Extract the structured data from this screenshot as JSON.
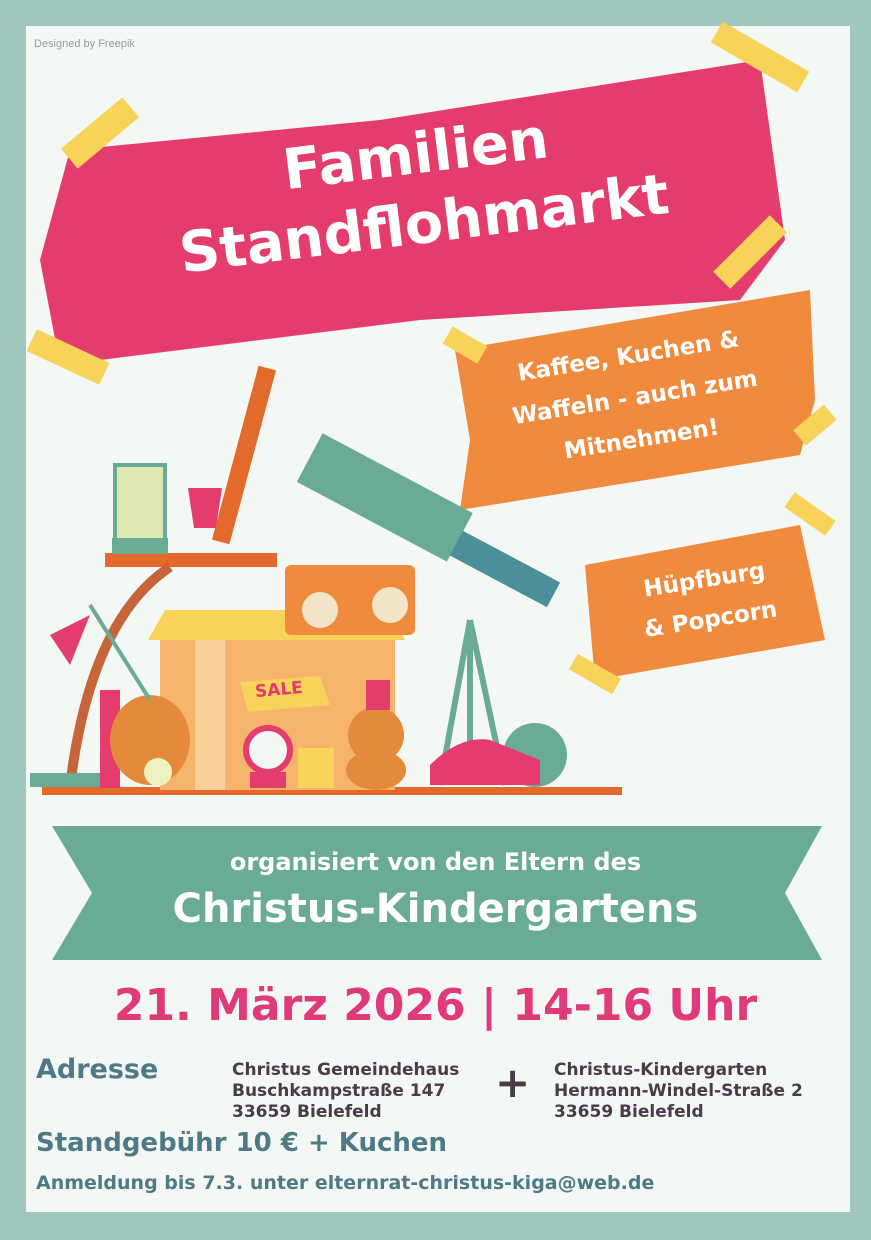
{
  "credit": "Designed by Freepik",
  "title": {
    "line1": "Familien",
    "line2": "Standflohmarkt"
  },
  "offers": [
    {
      "lines": [
        "Kaffee, Kuchen &",
        "Waffeln - auch zum",
        "Mitnehmen!"
      ]
    },
    {
      "lines": [
        "Hüpfburg",
        "& Popcorn"
      ]
    }
  ],
  "illustration": {
    "sale_tag": "SALE"
  },
  "organizer": {
    "line1": "organisiert von den Eltern des",
    "line2": "Christus-Kindergartens"
  },
  "date": "21. März 2026 | 14-16 Uhr",
  "address": {
    "label": "Adresse",
    "separator": "+",
    "locations": [
      {
        "name": "Christus Gemeindehaus",
        "street": "Buschkampstraße 147",
        "city": "33659  Bielefeld"
      },
      {
        "name": "Christus-Kindergarten",
        "street": "Hermann-Windel-Straße 2",
        "city": "33659  Bielefeld"
      }
    ]
  },
  "fee": "Standgebühr 10 € + Kuchen",
  "registration": "Anmeldung bis 7.3. unter elternrat-christus-kiga@web.de",
  "colors": {
    "border": "#9ec7bd",
    "pink": "#e53c6e",
    "orange": "#f08a3c",
    "teal": "#6aab98",
    "date": "#e03a7a",
    "info": "#4e7a85"
  }
}
